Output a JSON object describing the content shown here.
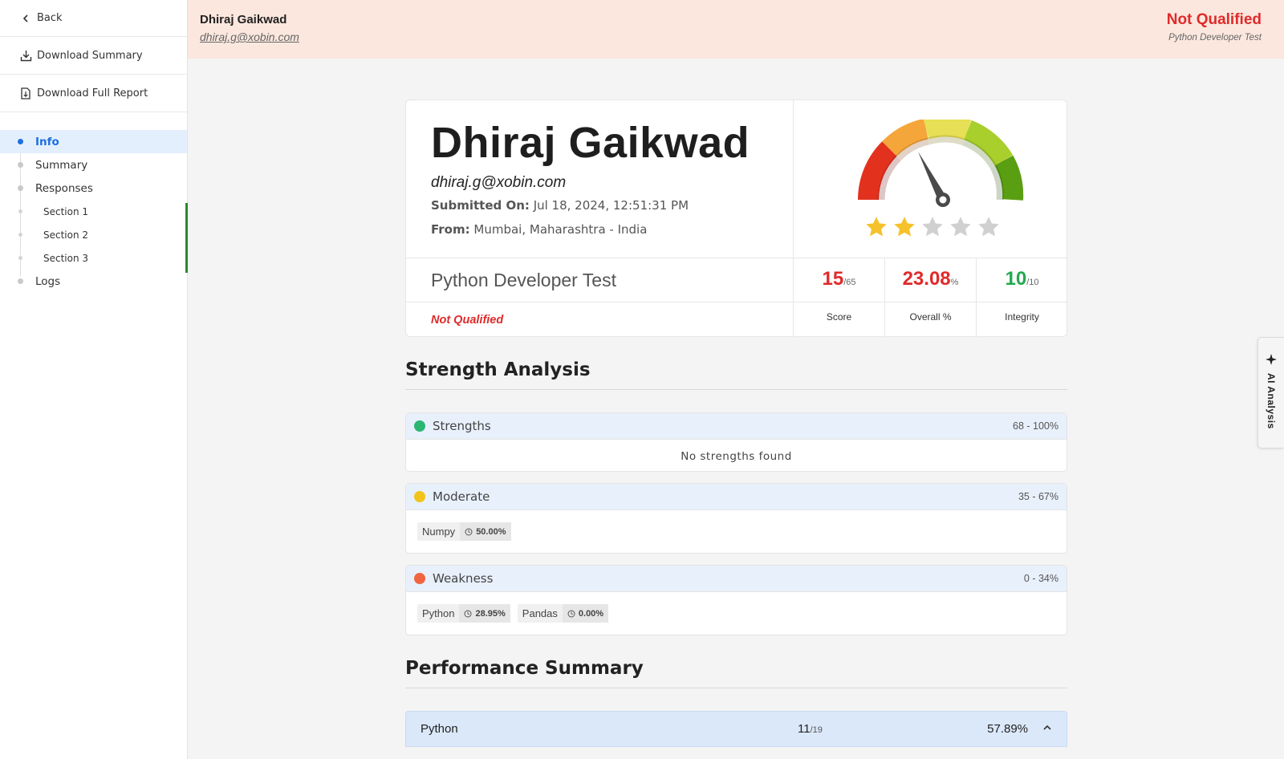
{
  "sidebar": {
    "back_label": "Back",
    "download_summary_label": "Download Summary",
    "download_full_label": "Download Full Report",
    "nav": [
      {
        "label": "Info",
        "active": true
      },
      {
        "label": "Summary"
      },
      {
        "label": "Responses"
      },
      {
        "label": "Section 1"
      },
      {
        "label": "Section 2"
      },
      {
        "label": "Section 3"
      },
      {
        "label": "Logs"
      }
    ]
  },
  "header": {
    "name": "Dhiraj Gaikwad",
    "email": "dhiraj.g@xobin.com",
    "status": "Not Qualified",
    "test_name": "Python Developer Test"
  },
  "candidate": {
    "name": "Dhiraj Gaikwad",
    "email": "dhiraj.g@xobin.com",
    "submitted_label": "Submitted On:",
    "submitted_value": "Jul 18, 2024, 12:51:31 PM",
    "from_label": "From:",
    "from_value": "Mumbai, Maharashtra - India",
    "rating_stars": 2,
    "rating_max": 5,
    "gauge_level": 0.23
  },
  "test": {
    "title": "Python Developer Test",
    "status": "Not Qualified",
    "score": "15",
    "score_max": "/65",
    "score_caption": "Score",
    "overall": "23.08",
    "overall_unit": "%",
    "overall_caption": "Overall %",
    "integrity": "10",
    "integrity_max": "/10",
    "integrity_caption": "Integrity"
  },
  "strength_analysis": {
    "title": "Strength Analysis",
    "strengths": {
      "title": "Strengths",
      "range": "68 - 100%",
      "empty_text": "No strengths found"
    },
    "moderate": {
      "title": "Moderate",
      "range": "35 - 67%",
      "items": [
        {
          "name": "Numpy",
          "pct": "50.00%"
        }
      ]
    },
    "weakness": {
      "title": "Weakness",
      "range": "0 - 34%",
      "items": [
        {
          "name": "Python",
          "pct": "28.95%"
        },
        {
          "name": "Pandas",
          "pct": "0.00%"
        }
      ]
    }
  },
  "performance": {
    "title": "Performance Summary",
    "rows": [
      {
        "name": "Python",
        "score": "11",
        "score_max": "/19",
        "pct": "57.89%"
      }
    ]
  },
  "ai_tab": {
    "label": "AI Analysis"
  },
  "colors": {
    "accent": "#1c6fe0",
    "fail": "#e02a2a",
    "pass": "#22a94f",
    "header_bg": "#fbe7de"
  },
  "icons": [
    "chevron-left-icon",
    "download-icon",
    "file-download-icon",
    "clock-icon",
    "chevron-up-icon",
    "sparkle-icon",
    "star-icon",
    "gauge-icon"
  ]
}
